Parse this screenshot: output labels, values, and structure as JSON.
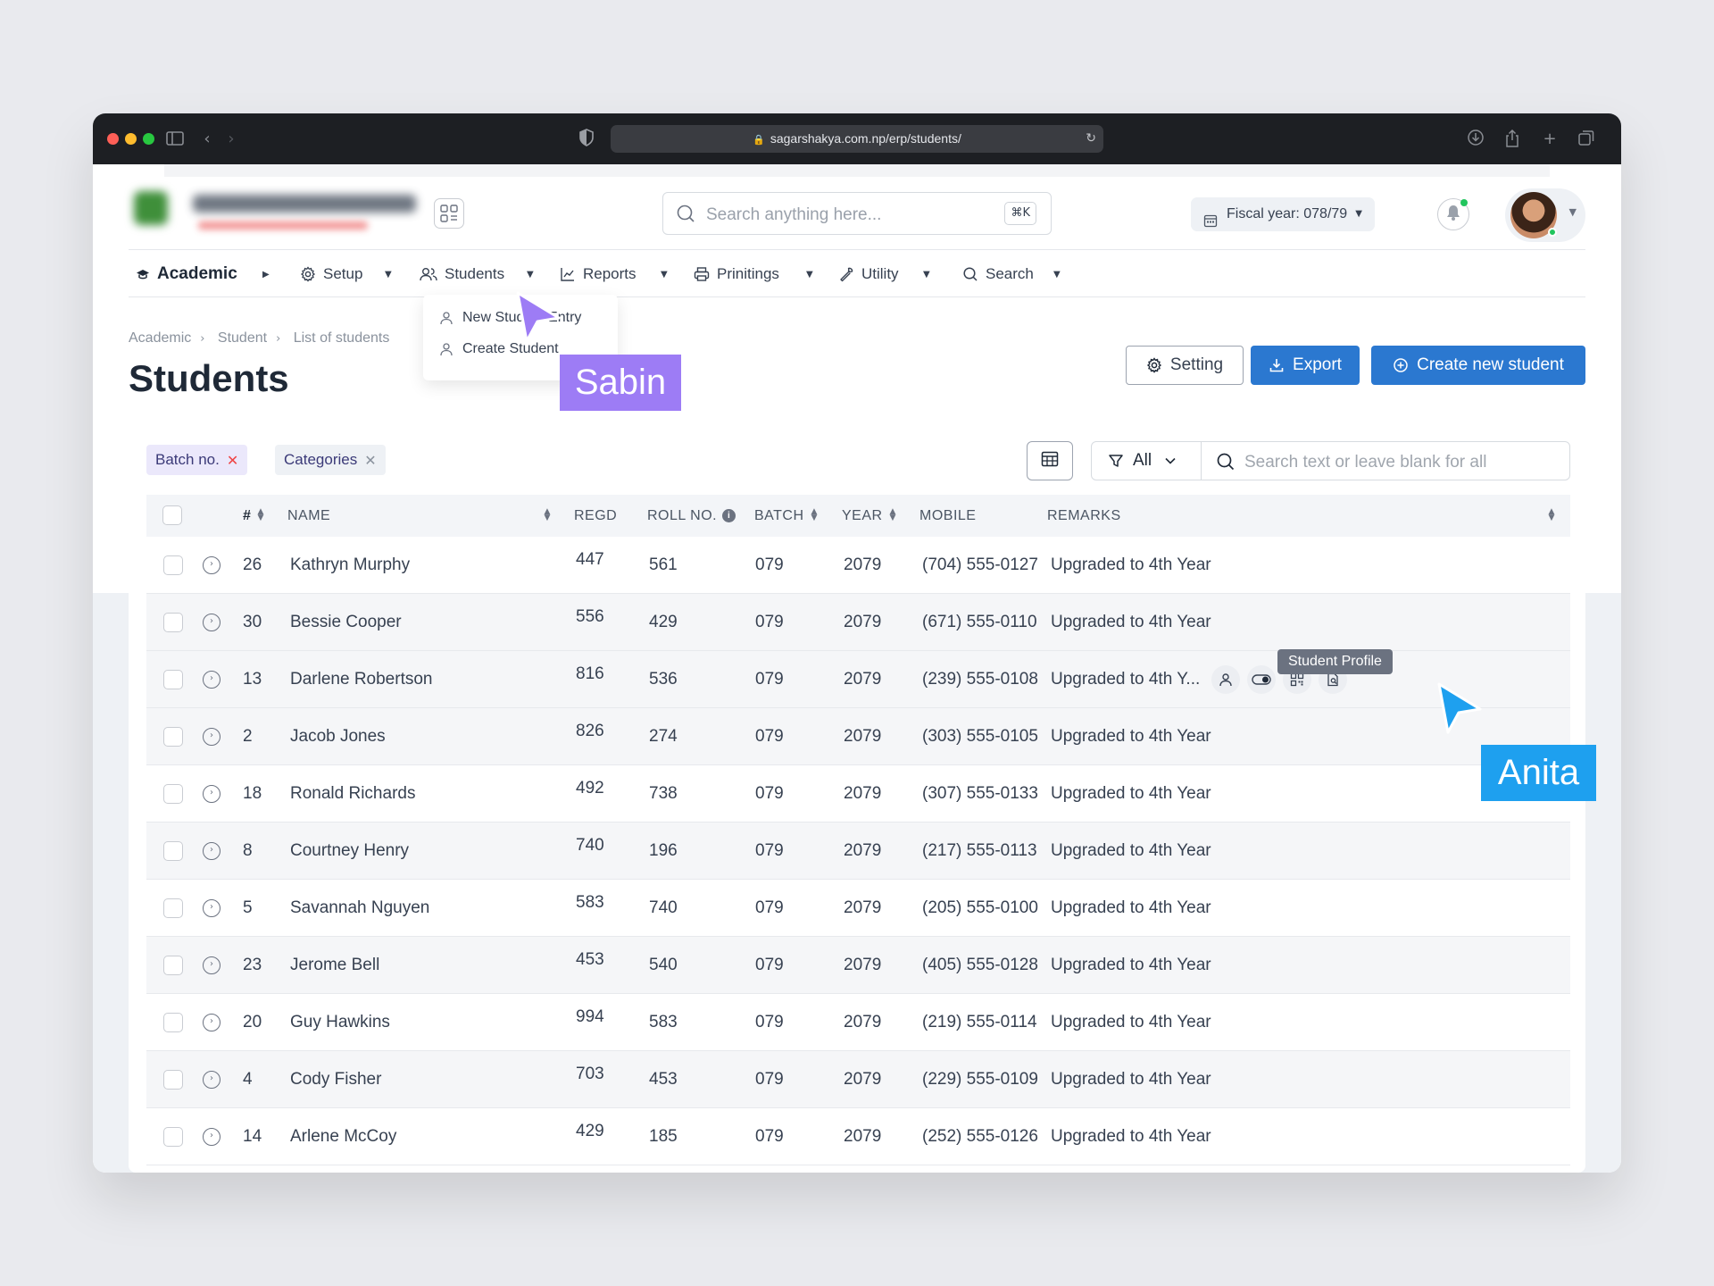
{
  "browser": {
    "url": "sagarshakya.com.np/erp/students/"
  },
  "header": {
    "search_placeholder": "Search anything here...",
    "shortcut": "⌘K",
    "fiscal_year": "Fiscal year: 078/79"
  },
  "nav": {
    "items": [
      {
        "label": "Academic",
        "icon": "graduation-cap-icon"
      },
      {
        "label": "Setup",
        "icon": "gear-icon"
      },
      {
        "label": "Students",
        "icon": "users-icon"
      },
      {
        "label": "Reports",
        "icon": "line-chart-icon"
      },
      {
        "label": "Prinitings",
        "icon": "printer-icon"
      },
      {
        "label": "Utility",
        "icon": "wrench-icon"
      },
      {
        "label": "Search",
        "icon": "search-icon"
      }
    ],
    "students_menu": [
      {
        "label": "New Student Entry"
      },
      {
        "label": "Create Student"
      }
    ]
  },
  "breadcrumb": [
    "Academic",
    "Student",
    "List of students"
  ],
  "page_title": "Students",
  "actions": {
    "setting": "Setting",
    "export": "Export",
    "create": "Create new student"
  },
  "filters": {
    "chips": [
      "Batch no.",
      "Categories"
    ],
    "select_value": "All",
    "search_placeholder": "Search text or leave blank for all"
  },
  "table": {
    "columns": [
      "#",
      "NAME",
      "REGD",
      "ROLL NO.",
      "BATCH",
      "YEAR",
      "MOBILE",
      "REMARKS"
    ],
    "rows": [
      {
        "num": "26",
        "name": "Kathryn Murphy",
        "regd": "447",
        "roll": "561",
        "batch": "079",
        "year": "2079",
        "mobile": "(704) 555-0127",
        "remarks": "Upgraded to 4th Year"
      },
      {
        "num": "30",
        "name": "Bessie Cooper",
        "regd": "556",
        "roll": "429",
        "batch": "079",
        "year": "2079",
        "mobile": "(671) 555-0110",
        "remarks": "Upgraded to 4th Year"
      },
      {
        "num": "13",
        "name": "Darlene Robertson",
        "regd": "816",
        "roll": "536",
        "batch": "079",
        "year": "2079",
        "mobile": "(239) 555-0108",
        "remarks": "Upgraded to 4th Y..."
      },
      {
        "num": "2",
        "name": "Jacob Jones",
        "regd": "826",
        "roll": "274",
        "batch": "079",
        "year": "2079",
        "mobile": "(303) 555-0105",
        "remarks": "Upgraded to 4th Year"
      },
      {
        "num": "18",
        "name": "Ronald Richards",
        "regd": "492",
        "roll": "738",
        "batch": "079",
        "year": "2079",
        "mobile": "(307) 555-0133",
        "remarks": "Upgraded to 4th Year"
      },
      {
        "num": "8",
        "name": "Courtney Henry",
        "regd": "740",
        "roll": "196",
        "batch": "079",
        "year": "2079",
        "mobile": "(217) 555-0113",
        "remarks": "Upgraded to 4th Year"
      },
      {
        "num": "5",
        "name": "Savannah Nguyen",
        "regd": "583",
        "roll": "740",
        "batch": "079",
        "year": "2079",
        "mobile": "(205) 555-0100",
        "remarks": "Upgraded to 4th Year"
      },
      {
        "num": "23",
        "name": "Jerome Bell",
        "regd": "453",
        "roll": "540",
        "batch": "079",
        "year": "2079",
        "mobile": "(405) 555-0128",
        "remarks": "Upgraded to 4th Year"
      },
      {
        "num": "20",
        "name": "Guy Hawkins",
        "regd": "994",
        "roll": "583",
        "batch": "079",
        "year": "2079",
        "mobile": "(219) 555-0114",
        "remarks": "Upgraded to 4th Year"
      },
      {
        "num": "4",
        "name": "Cody Fisher",
        "regd": "703",
        "roll": "453",
        "batch": "079",
        "year": "2079",
        "mobile": "(229) 555-0109",
        "remarks": "Upgraded to 4th Year"
      },
      {
        "num": "14",
        "name": "Arlene McCoy",
        "regd": "429",
        "roll": "185",
        "batch": "079",
        "year": "2079",
        "mobile": "(252) 555-0126",
        "remarks": "Upgraded to 4th Year"
      }
    ],
    "row_actions": [
      "user-profile-icon",
      "toggle-icon",
      "qr-code-icon",
      "document-icon"
    ],
    "tooltip": "Student Profile"
  },
  "cursors": [
    {
      "name": "Sabin",
      "color": "#9d7cf5"
    },
    {
      "name": "Anita",
      "color": "#1ea0ef"
    }
  ],
  "colors": {
    "primary": "#2b78d0",
    "chip_active_bg": "#ebe8fb",
    "chip_remove": "#ef4444"
  }
}
